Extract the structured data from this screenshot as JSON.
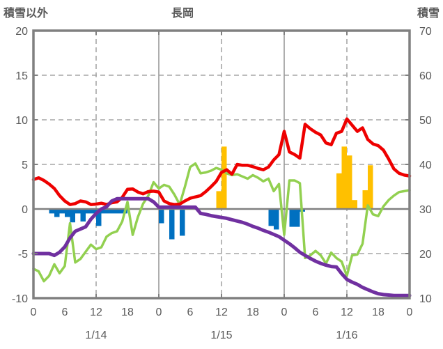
{
  "header": {
    "left_axis_title": "積雪以外",
    "title": "長岡",
    "right_axis_title": "積雪"
  },
  "colors": {
    "red_line": "#ee0000",
    "green_line": "#92d050",
    "purple_line": "#7030a0",
    "blue_bars": "#0070c0",
    "orange_bars": "#ffc000",
    "frame": "#808080",
    "zero_line": "#808080",
    "grid_dashed": "#a6a6a6",
    "grid_solid": "#999999",
    "tick_text": "#595959"
  },
  "chart_data": {
    "type": "combo",
    "title": "長岡",
    "x_unit": "hours",
    "x_start_hour": 0,
    "x_end_hour": 72,
    "left_axis": {
      "title": "積雪以外",
      "min": -10,
      "max": 20,
      "ticks": [
        20,
        15,
        10,
        5,
        0,
        -5,
        -10
      ]
    },
    "right_axis": {
      "title": "積雪",
      "min": 10,
      "max": 70,
      "ticks": [
        70,
        60,
        50,
        40,
        30,
        20,
        10
      ]
    },
    "x_axis": {
      "hour_tick_step": 6,
      "hour_labels": [
        "0",
        "6",
        "12",
        "18",
        "0",
        "6",
        "12",
        "18",
        "0",
        "6",
        "12",
        "18",
        "0"
      ],
      "date_labels": [
        "1/14",
        "1/15",
        "1/16"
      ],
      "date_label_hours": [
        12,
        36,
        60
      ]
    },
    "grid": {
      "dashed_horizontal_at": [
        15,
        10,
        5,
        -5
      ],
      "dashed_vertical_hours": [
        12,
        36,
        60
      ],
      "solid_vertical_hours": [
        24,
        48
      ],
      "zero_line_at": 0,
      "edge_tick_hours": [
        0,
        12,
        24,
        36,
        48,
        60,
        72
      ]
    },
    "series": [
      {
        "name": "red-line",
        "type": "line",
        "axis": "left",
        "color_key": "red_line",
        "hourly_values": [
          3.3,
          3.5,
          3.2,
          2.8,
          2.3,
          1.5,
          0.9,
          0.5,
          0.6,
          0.9,
          0.8,
          0.5,
          0.55,
          0.65,
          0.5,
          0.7,
          0.8,
          1.3,
          2.2,
          2.25,
          1.9,
          1.7,
          1.95,
          2.0,
          1.9,
          0.9,
          0.6,
          0.5,
          0.55,
          0.9,
          1.2,
          1.35,
          1.5,
          1.95,
          2.5,
          3.1,
          4.1,
          4.4,
          3.9,
          5.0,
          4.9,
          4.9,
          4.75,
          4.55,
          4.4,
          4.7,
          5.5,
          6.1,
          8.7,
          6.4,
          6.1,
          5.7,
          9.5,
          9.0,
          8.6,
          8.3,
          7.4,
          7.2,
          8.5,
          8.7,
          10.1,
          9.4,
          8.7,
          9.1,
          7.8,
          7.3,
          7.1,
          6.6,
          5.6,
          4.5,
          4.0,
          3.8,
          3.7
        ]
      },
      {
        "name": "green-line",
        "type": "line",
        "axis": "left",
        "color_key": "green_line",
        "hourly_values": [
          -6.7,
          -7.0,
          -8.1,
          -7.5,
          -6.2,
          -7.2,
          -6.4,
          -1.6,
          -6.0,
          -5.6,
          -4.8,
          -4.0,
          -4.5,
          -4.3,
          -3.1,
          -2.7,
          -2.5,
          -1.4,
          0.8,
          -2.9,
          -0.9,
          0.6,
          1.5,
          3.0,
          2.3,
          2.7,
          2.5,
          1.6,
          0.5,
          2.5,
          4.7,
          5.1,
          4.0,
          4.1,
          4.3,
          4.6,
          4.4,
          4.0,
          3.8,
          3.9,
          3.65,
          3.4,
          3.8,
          3.5,
          3.1,
          3.4,
          2.0,
          2.8,
          -2.9,
          3.2,
          3.2,
          2.9,
          -5.5,
          -5.2,
          -4.7,
          -5.2,
          -6.1,
          -4.9,
          -5.5,
          -5.9,
          -7.5,
          -5.2,
          -5.1,
          -3.9,
          0.4,
          -0.6,
          -0.8,
          0.3,
          1.0,
          1.5,
          1.9,
          2.0,
          2.1
        ]
      },
      {
        "name": "purple-line",
        "type": "line",
        "axis": "right",
        "color_key": "purple_line",
        "hourly_values": [
          20,
          20,
          20,
          20,
          19.6,
          20.3,
          21.5,
          23.5,
          25,
          25.5,
          26,
          27.7,
          29,
          30,
          30.5,
          31.8,
          32.3,
          32.3,
          32.3,
          32.3,
          32.3,
          32.3,
          32.3,
          31.6,
          30.4,
          30.4,
          30.4,
          30.4,
          30.4,
          30.4,
          30.4,
          30.4,
          29,
          28.8,
          28.5,
          28.3,
          28.1,
          27.9,
          27.6,
          27.3,
          27,
          26.6,
          26.1,
          25.7,
          25.2,
          24.8,
          24.3,
          23.8,
          23,
          22.2,
          21.3,
          20.3,
          19.6,
          18.9,
          18.3,
          17.8,
          17.4,
          17.1,
          17,
          15.5,
          14.2,
          13.6,
          13.1,
          12.4,
          11.9,
          11.4,
          11,
          10.8,
          10.7,
          10.6,
          10.6,
          10.6,
          10.6
        ]
      },
      {
        "name": "blue-bars",
        "type": "bar",
        "axis": "left",
        "color_key": "blue_bars",
        "points": [
          [
            3,
            -0.5
          ],
          [
            4,
            -0.9
          ],
          [
            5,
            -0.5
          ],
          [
            6,
            -0.9
          ],
          [
            7,
            -1.5
          ],
          [
            8,
            -0.5
          ],
          [
            9,
            -1.4
          ],
          [
            10,
            -0.5
          ],
          [
            11,
            -0.5
          ],
          [
            12,
            -1.9
          ],
          [
            13,
            -0.5
          ],
          [
            14,
            -0.5
          ],
          [
            15,
            -0.5
          ],
          [
            16,
            -0.5
          ],
          [
            17,
            -0.5
          ],
          [
            24,
            -1.6
          ],
          [
            26,
            -3.4
          ],
          [
            28,
            -3.0
          ],
          [
            45,
            -1.9
          ],
          [
            46,
            -2.3
          ],
          [
            49,
            -2.0
          ],
          [
            50,
            -2.0
          ],
          [
            51,
            -0.3
          ]
        ]
      },
      {
        "name": "orange-bars",
        "type": "bar",
        "axis": "left",
        "color_key": "orange_bars",
        "points": [
          [
            35,
            2.0
          ],
          [
            36,
            7.0
          ],
          [
            58,
            4.0
          ],
          [
            59,
            7.0
          ],
          [
            60,
            6.0
          ],
          [
            61,
            1.0
          ],
          [
            63,
            2.1
          ],
          [
            64,
            4.9
          ]
        ]
      }
    ]
  }
}
